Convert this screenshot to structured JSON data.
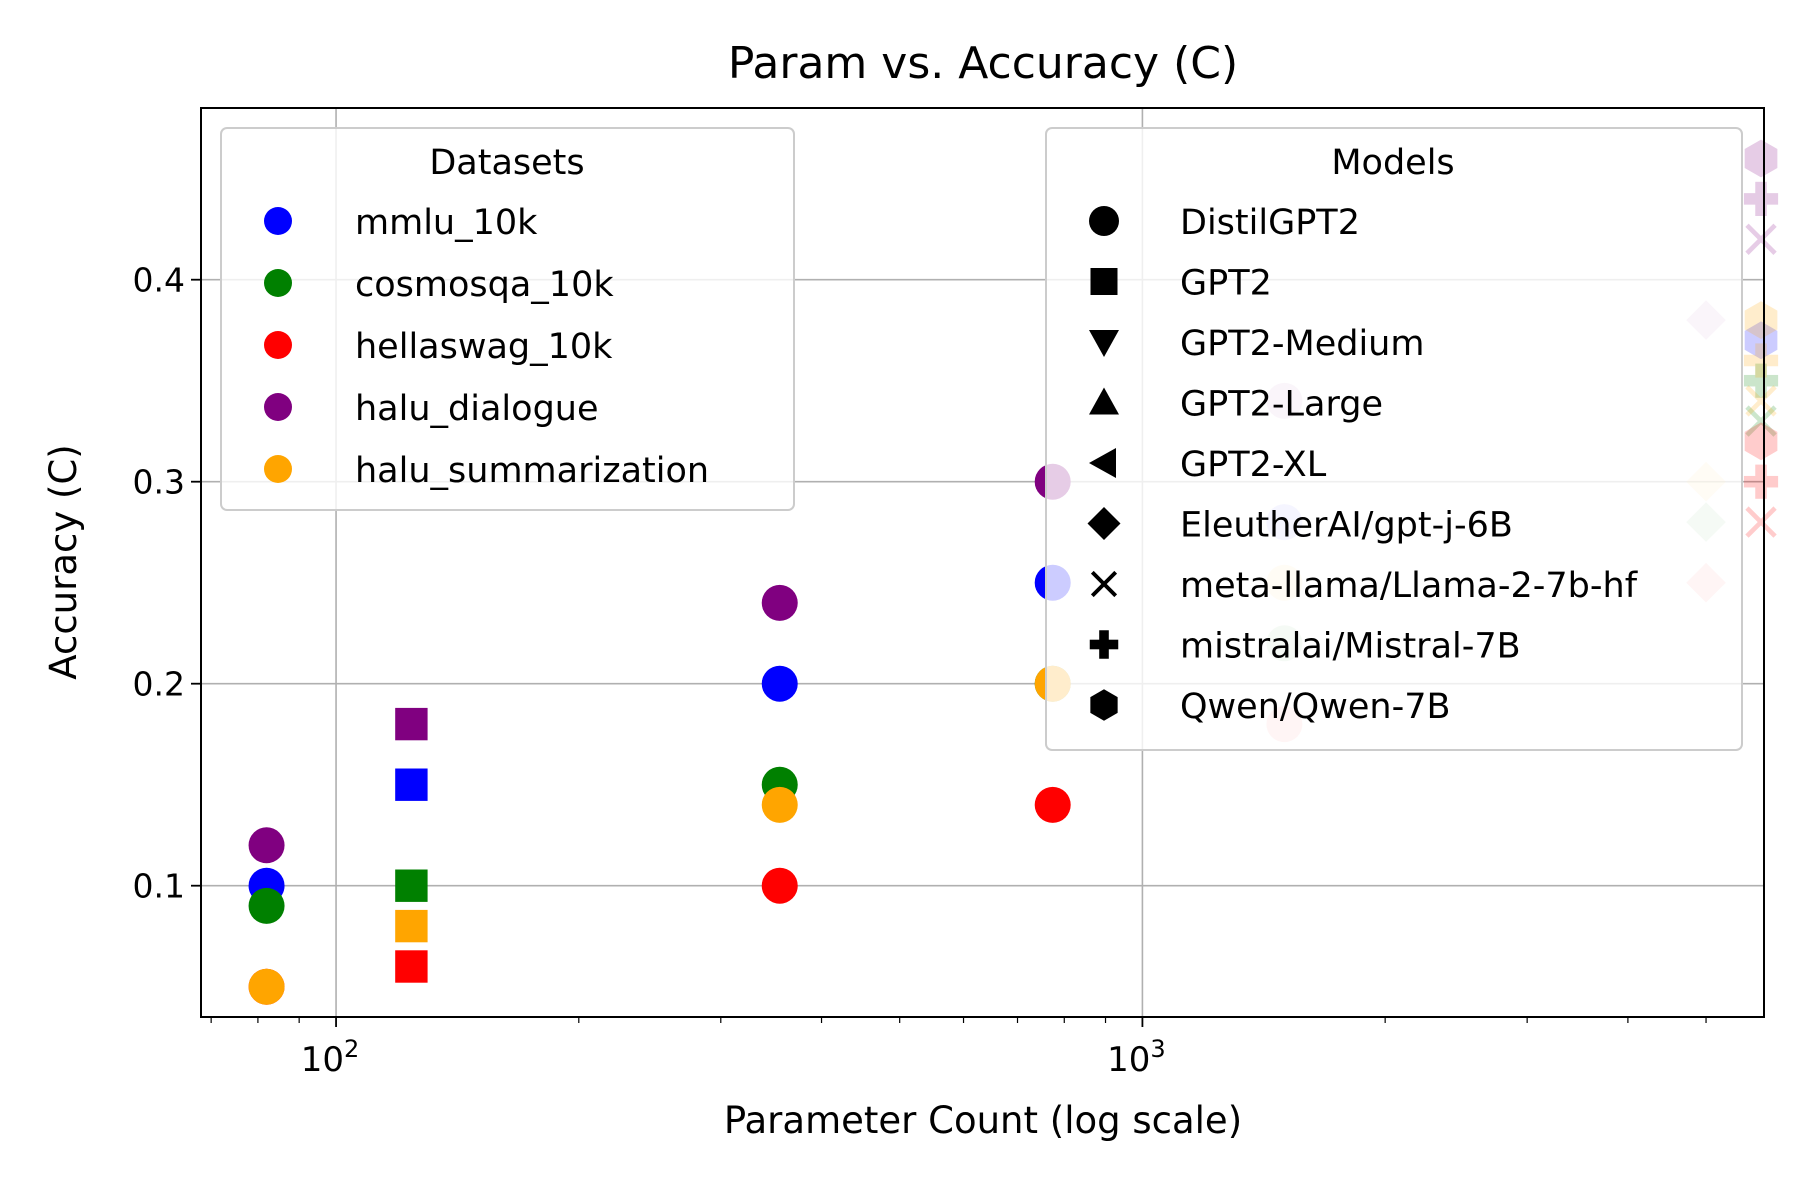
{
  "chart_data": {
    "type": "scatter",
    "title": "Param vs. Accuracy (C)",
    "xlabel": "Parameter Count (log scale)",
    "ylabel": "Accuracy (C)",
    "x_scale": "log",
    "xlim": [
      68,
      5900
    ],
    "ylim": [
      0.035,
      0.485
    ],
    "x_ticks": [
      {
        "value": 100,
        "base": "10",
        "exp": "2"
      },
      {
        "value": 1000,
        "base": "10",
        "exp": "3"
      }
    ],
    "y_ticks": [
      {
        "value": 0.1,
        "label": "0.1"
      },
      {
        "value": 0.2,
        "label": "0.2"
      },
      {
        "value": 0.3,
        "label": "0.3"
      },
      {
        "value": 0.4,
        "label": "0.4"
      }
    ],
    "grid": true,
    "datasets": [
      {
        "name": "mmlu_10k",
        "color": "#0000ff"
      },
      {
        "name": "cosmosqa_10k",
        "color": "#008000"
      },
      {
        "name": "hellaswag_10k",
        "color": "#ff0000"
      },
      {
        "name": "halu_dialogue",
        "color": "#800080"
      },
      {
        "name": "halu_summarization",
        "color": "#ffa500"
      }
    ],
    "models": [
      {
        "name": "DistilGPT2",
        "marker": "circle"
      },
      {
        "name": "GPT2",
        "marker": "square"
      },
      {
        "name": "GPT2-Medium",
        "marker": "triangle-down"
      },
      {
        "name": "GPT2-Large",
        "marker": "triangle-up"
      },
      {
        "name": "GPT2-XL",
        "marker": "triangle-left"
      },
      {
        "name": "EleutherAI/gpt-j-6B",
        "marker": "diamond"
      },
      {
        "name": "meta-llama/Llama-2-7b-hf",
        "marker": "x"
      },
      {
        "name": "mistralai/Mistral-7B",
        "marker": "plus"
      },
      {
        "name": "Qwen/Qwen-7B",
        "marker": "hexagon"
      }
    ],
    "legends": {
      "datasets": {
        "title": "Datasets",
        "placement": "upper-left"
      },
      "models": {
        "title": "Models",
        "placement": "upper-right"
      }
    },
    "points": [
      {
        "x": 82,
        "y": 0.1,
        "dataset": "mmlu_10k",
        "marker": "circle"
      },
      {
        "x": 82,
        "y": 0.09,
        "dataset": "cosmosqa_10k",
        "marker": "circle"
      },
      {
        "x": 82,
        "y": 0.05,
        "dataset": "hellaswag_10k",
        "marker": "circle"
      },
      {
        "x": 82,
        "y": 0.12,
        "dataset": "halu_dialogue",
        "marker": "circle"
      },
      {
        "x": 82,
        "y": 0.05,
        "dataset": "halu_summarization",
        "marker": "circle"
      },
      {
        "x": 124,
        "y": 0.15,
        "dataset": "mmlu_10k",
        "marker": "square"
      },
      {
        "x": 124,
        "y": 0.1,
        "dataset": "cosmosqa_10k",
        "marker": "square"
      },
      {
        "x": 124,
        "y": 0.06,
        "dataset": "hellaswag_10k",
        "marker": "square"
      },
      {
        "x": 124,
        "y": 0.18,
        "dataset": "halu_dialogue",
        "marker": "square"
      },
      {
        "x": 124,
        "y": 0.08,
        "dataset": "halu_summarization",
        "marker": "square"
      },
      {
        "x": 355,
        "y": 0.2,
        "dataset": "mmlu_10k",
        "marker": "circle"
      },
      {
        "x": 355,
        "y": 0.15,
        "dataset": "cosmosqa_10k",
        "marker": "circle"
      },
      {
        "x": 355,
        "y": 0.1,
        "dataset": "hellaswag_10k",
        "marker": "circle"
      },
      {
        "x": 355,
        "y": 0.24,
        "dataset": "halu_dialogue",
        "marker": "circle"
      },
      {
        "x": 355,
        "y": 0.14,
        "dataset": "halu_summarization",
        "marker": "circle"
      },
      {
        "x": 774,
        "y": 0.25,
        "dataset": "mmlu_10k",
        "marker": "circle"
      },
      {
        "x": 774,
        "y": 0.2,
        "dataset": "cosmosqa_10k",
        "marker": "circle"
      },
      {
        "x": 774,
        "y": 0.14,
        "dataset": "hellaswag_10k",
        "marker": "circle"
      },
      {
        "x": 774,
        "y": 0.3,
        "dataset": "halu_dialogue",
        "marker": "circle"
      },
      {
        "x": 774,
        "y": 0.2,
        "dataset": "halu_summarization",
        "marker": "circle"
      },
      {
        "x": 1500,
        "y": 0.28,
        "dataset": "mmlu_10k",
        "marker": "circle"
      },
      {
        "x": 1500,
        "y": 0.22,
        "dataset": "cosmosqa_10k",
        "marker": "circle"
      },
      {
        "x": 1500,
        "y": 0.18,
        "dataset": "hellaswag_10k",
        "marker": "circle"
      },
      {
        "x": 1500,
        "y": 0.34,
        "dataset": "halu_dialogue",
        "marker": "circle"
      },
      {
        "x": 1500,
        "y": 0.25,
        "dataset": "halu_summarization",
        "marker": "circle"
      },
      {
        "x": 5000,
        "y": 0.28,
        "dataset": "cosmosqa_10k",
        "marker": "diamond"
      },
      {
        "x": 5000,
        "y": 0.25,
        "dataset": "hellaswag_10k",
        "marker": "diamond"
      },
      {
        "x": 5000,
        "y": 0.38,
        "dataset": "halu_dialogue",
        "marker": "diamond"
      },
      {
        "x": 5000,
        "y": 0.3,
        "dataset": "halu_summarization",
        "marker": "diamond"
      },
      {
        "x": 5850,
        "y": 0.37,
        "dataset": "mmlu_10k",
        "marker": "hexagon"
      },
      {
        "x": 5850,
        "y": 0.35,
        "dataset": "cosmosqa_10k",
        "marker": "plus"
      },
      {
        "x": 5850,
        "y": 0.33,
        "dataset": "cosmosqa_10k",
        "marker": "x"
      },
      {
        "x": 5850,
        "y": 0.32,
        "dataset": "hellaswag_10k",
        "marker": "hexagon"
      },
      {
        "x": 5850,
        "y": 0.3,
        "dataset": "hellaswag_10k",
        "marker": "plus"
      },
      {
        "x": 5850,
        "y": 0.28,
        "dataset": "hellaswag_10k",
        "marker": "x"
      },
      {
        "x": 5850,
        "y": 0.46,
        "dataset": "halu_dialogue",
        "marker": "hexagon"
      },
      {
        "x": 5850,
        "y": 0.44,
        "dataset": "halu_dialogue",
        "marker": "plus"
      },
      {
        "x": 5850,
        "y": 0.42,
        "dataset": "halu_dialogue",
        "marker": "x"
      },
      {
        "x": 5850,
        "y": 0.38,
        "dataset": "halu_summarization",
        "marker": "hexagon"
      },
      {
        "x": 5850,
        "y": 0.36,
        "dataset": "halu_summarization",
        "marker": "plus"
      },
      {
        "x": 5850,
        "y": 0.34,
        "dataset": "halu_summarization",
        "marker": "x"
      }
    ]
  }
}
